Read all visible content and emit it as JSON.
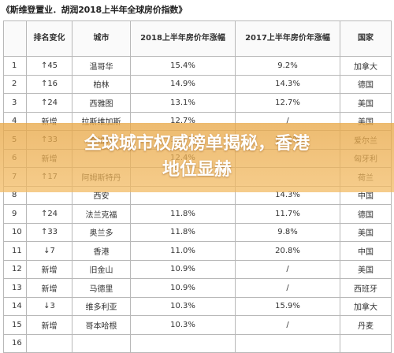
{
  "title": "《斯维登置业．胡润2018上半年全球房价指数》",
  "table": {
    "headers": [
      "",
      "排名变化",
      "城市",
      "2018上半年房价年涨幅",
      "2017上半年房价年涨幅",
      "国家"
    ],
    "rows": [
      [
        "1",
        "↑45",
        "温哥华",
        "15.4%",
        "9.2%",
        "加拿大"
      ],
      [
        "2",
        "↑16",
        "柏林",
        "14.9%",
        "14.3%",
        "德国"
      ],
      [
        "3",
        "↑24",
        "西雅图",
        "13.1%",
        "12.7%",
        "美国"
      ],
      [
        "4",
        "新增",
        "拉斯维加斯",
        "12.7%",
        "/",
        "美国"
      ],
      [
        "5",
        "↑33",
        "都柏林",
        "12.5%",
        "11.2%",
        "爱尔兰"
      ],
      [
        "6",
        "新增",
        "",
        "12.4%",
        "",
        "匈牙利"
      ],
      [
        "7",
        "↑17",
        "阿姆斯特丹",
        "",
        "",
        "荷兰"
      ],
      [
        "8",
        "",
        "西安",
        "",
        "14.3%",
        "中国"
      ],
      [
        "9",
        "↑24",
        "法兰克福",
        "11.8%",
        "11.7%",
        "德国"
      ],
      [
        "10",
        "↑33",
        "奥兰多",
        "11.8%",
        "9.8%",
        "美国"
      ],
      [
        "11",
        "↓7",
        "香港",
        "11.0%",
        "20.8%",
        "中国"
      ],
      [
        "12",
        "新增",
        "旧金山",
        "10.9%",
        "/",
        "美国"
      ],
      [
        "13",
        "新增",
        "马德里",
        "10.9%",
        "/",
        "西班牙"
      ],
      [
        "14",
        "↓3",
        "维多利亚",
        "10.3%",
        "15.9%",
        "加拿大"
      ],
      [
        "15",
        "新增",
        "哥本哈根",
        "10.3%",
        "/",
        "丹麦"
      ],
      [
        "16",
        "",
        "",
        "",
        "",
        ""
      ]
    ]
  },
  "banner": {
    "line1": "全球城市权威榜单揭秘，香港",
    "line2": "地位显赫"
  },
  "colors": {
    "banner": "#E9A84A",
    "border": "#B8B8B8",
    "arrow_up": "#333333",
    "arrow_down": "#333333"
  }
}
